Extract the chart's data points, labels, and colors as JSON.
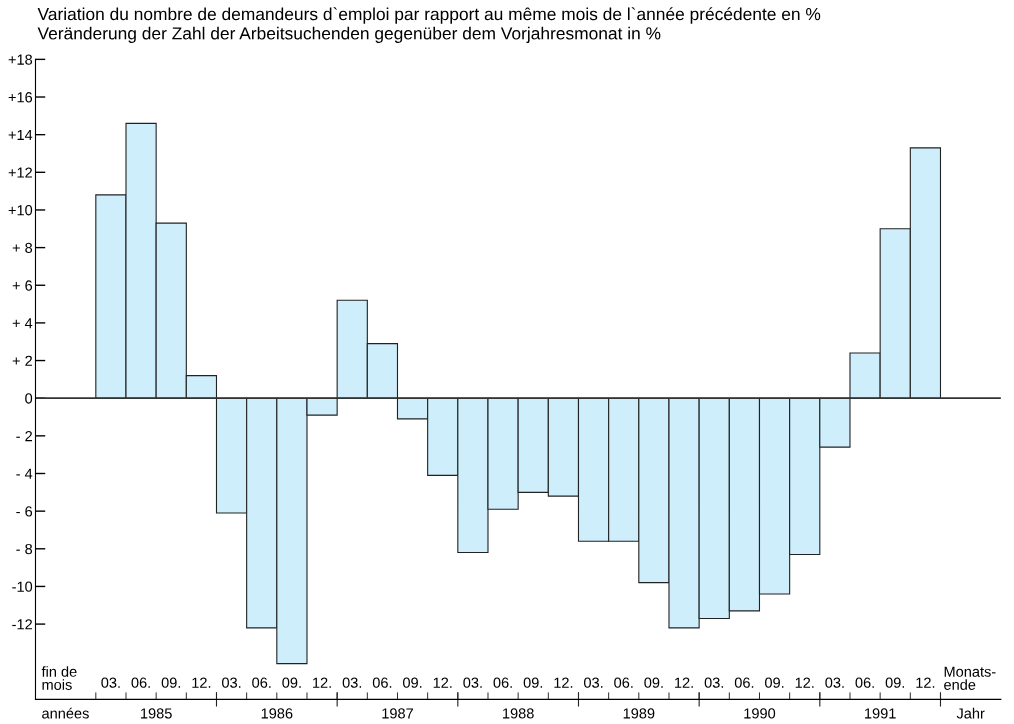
{
  "chart_data": {
    "type": "bar",
    "title": "Variation du nombre de demandeurs d`emploi par rapport au même mois de l`année précédente en %",
    "subtitle": "Veränderung der Zahl der Arbeitsuchenden gegenüber dem Vorjahresmonat in %",
    "categories": [
      "03.",
      "06.",
      "09.",
      "12.",
      "03.",
      "06.",
      "09.",
      "12.",
      "03.",
      "06.",
      "09.",
      "12.",
      "03.",
      "06.",
      "09.",
      "12.",
      "03.",
      "06.",
      "09.",
      "12.",
      "03.",
      "06.",
      "09.",
      "12.",
      "03.",
      "06.",
      "09.",
      "12."
    ],
    "values": [
      10.8,
      14.6,
      9.3,
      1.2,
      -6.1,
      -12.2,
      -14.1,
      -0.9,
      5.2,
      2.9,
      -1.1,
      -4.1,
      -8.2,
      -5.9,
      -5.0,
      -5.2,
      -7.6,
      -7.6,
      -9.8,
      -12.2,
      -11.7,
      -11.3,
      -10.4,
      -8.3,
      -2.6,
      2.4,
      9.0,
      13.3
    ],
    "color": "#cdeefa",
    "ylim": [
      -16,
      18
    ],
    "yticks": [
      {
        "value": 18,
        "label": "+18"
      },
      {
        "value": 16,
        "label": "+16"
      },
      {
        "value": 14,
        "label": "+14"
      },
      {
        "value": 12,
        "label": "+12"
      },
      {
        "value": 10,
        "label": "+10"
      },
      {
        "value": 8,
        "label": "+ 8"
      },
      {
        "value": 6,
        "label": "+ 6"
      },
      {
        "value": 4,
        "label": "+ 4"
      },
      {
        "value": 2,
        "label": "+ 2"
      },
      0,
      {
        "value": -2,
        "label": "- 2"
      },
      {
        "value": -4,
        "label": "- 4"
      },
      {
        "value": -6,
        "label": "- 6"
      },
      {
        "value": -8,
        "label": "- 8"
      },
      {
        "value": -10,
        "label": "-10"
      },
      {
        "value": -12,
        "label": "-12"
      }
    ],
    "ref_lines": [
      {
        "axis": "y",
        "value": 0,
        "color": "#333333"
      }
    ],
    "annotations": [
      "fin de\nmois",
      "années",
      "1985",
      "1986",
      "1987",
      "1988",
      "1989",
      "1990",
      "1991",
      "Monats-\nende",
      "Jahr"
    ],
    "grid": false
  }
}
